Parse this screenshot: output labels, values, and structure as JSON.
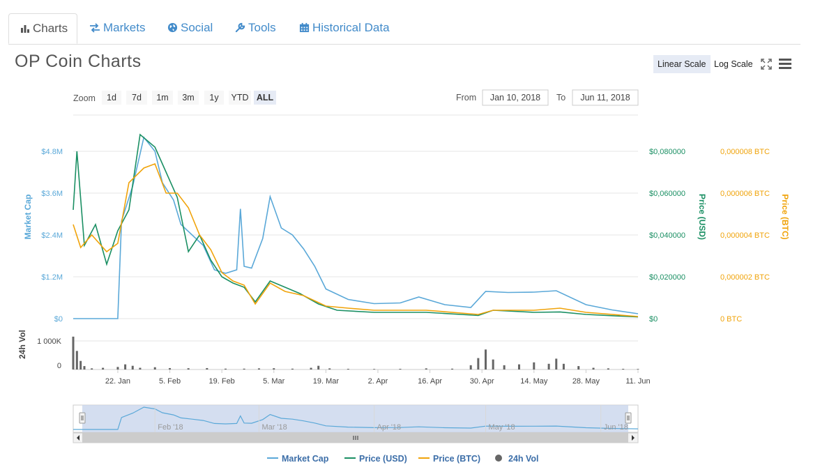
{
  "tabs": [
    {
      "label": "Charts",
      "icon": "bar-chart-icon",
      "active": true
    },
    {
      "label": "Markets",
      "icon": "exchange-icon"
    },
    {
      "label": "Social",
      "icon": "globe-icon"
    },
    {
      "label": "Tools",
      "icon": "wrench-icon"
    },
    {
      "label": "Historical Data",
      "icon": "calendar-icon"
    }
  ],
  "title": "OP Coin Charts",
  "scale": {
    "linear_label": "Linear Scale",
    "log_label": "Log Scale",
    "active": "linear"
  },
  "zoom": {
    "label": "Zoom",
    "buttons": [
      "1d",
      "7d",
      "1m",
      "3m",
      "1y",
      "YTD",
      "ALL"
    ],
    "selected": "ALL"
  },
  "range": {
    "from_label": "From",
    "from_value": "Jan 10, 2018",
    "to_label": "To",
    "to_value": "Jun 11, 2018"
  },
  "colors": {
    "market_cap": "#5aa8d8",
    "price_usd": "#1a8f63",
    "price_btc": "#f0a30a",
    "volume": "#666666",
    "navigator_fill": "#c9d6ec"
  },
  "chart_data": {
    "type": "line",
    "x_ticks": [
      "22. Jan",
      "5. Feb",
      "19. Feb",
      "5. Mar",
      "19. Mar",
      "2. Apr",
      "16. Apr",
      "30. Apr",
      "14. May",
      "28. May",
      "11. Jun"
    ],
    "x_range": [
      "2018-01-10",
      "2018-06-11"
    ],
    "axes": {
      "market_cap": {
        "title": "Market Cap",
        "ticks": [
          "$0",
          "$1.2M",
          "$2.4M",
          "$3.6M",
          "$4.8M"
        ],
        "range": [
          0,
          4800000
        ]
      },
      "price_usd": {
        "title": "Price (USD)",
        "ticks": [
          "$0",
          "$0,020000",
          "$0,040000",
          "$0,060000",
          "$0,080000"
        ],
        "range": [
          0,
          0.08
        ]
      },
      "price_btc": {
        "title": "Price (BTC)",
        "ticks": [
          "0 BTC",
          "0,000002 BTC",
          "0,000004 BTC",
          "0,000006 BTC",
          "0,000008 BTC"
        ],
        "range": [
          0,
          8e-06
        ]
      },
      "volume": {
        "title": "24h Vol",
        "ticks": [
          "0",
          "1 000K"
        ],
        "range": [
          0,
          1000000
        ]
      }
    },
    "series": [
      {
        "name": "Market Cap",
        "axis": "market_cap",
        "points": [
          [
            "2018-01-10",
            0
          ],
          [
            "2018-01-22",
            0
          ],
          [
            "2018-01-23",
            2800000
          ],
          [
            "2018-01-26",
            3800000
          ],
          [
            "2018-01-29",
            5200000
          ],
          [
            "2018-02-01",
            4800000
          ],
          [
            "2018-02-03",
            3900000
          ],
          [
            "2018-02-06",
            3400000
          ],
          [
            "2018-02-08",
            2700000
          ],
          [
            "2018-02-11",
            2400000
          ],
          [
            "2018-02-14",
            2100000
          ],
          [
            "2018-02-17",
            1400000
          ],
          [
            "2018-02-20",
            1300000
          ],
          [
            "2018-02-23",
            1400000
          ],
          [
            "2018-02-24",
            3150000
          ],
          [
            "2018-02-25",
            1500000
          ],
          [
            "2018-02-27",
            1450000
          ],
          [
            "2018-03-02",
            2300000
          ],
          [
            "2018-03-04",
            3500000
          ],
          [
            "2018-03-07",
            2600000
          ],
          [
            "2018-03-10",
            2400000
          ],
          [
            "2018-03-13",
            2000000
          ],
          [
            "2018-03-16",
            1500000
          ],
          [
            "2018-03-19",
            850000
          ],
          [
            "2018-03-25",
            550000
          ],
          [
            "2018-04-01",
            430000
          ],
          [
            "2018-04-08",
            450000
          ],
          [
            "2018-04-13",
            620000
          ],
          [
            "2018-04-20",
            400000
          ],
          [
            "2018-04-27",
            320000
          ],
          [
            "2018-05-01",
            780000
          ],
          [
            "2018-05-07",
            750000
          ],
          [
            "2018-05-14",
            760000
          ],
          [
            "2018-05-20",
            800000
          ],
          [
            "2018-05-28",
            400000
          ],
          [
            "2018-06-04",
            250000
          ],
          [
            "2018-06-11",
            140000
          ]
        ]
      },
      {
        "name": "Price (USD)",
        "axis": "price_usd",
        "points": [
          [
            "2018-01-10",
            0.052
          ],
          [
            "2018-01-11",
            0.08
          ],
          [
            "2018-01-13",
            0.035
          ],
          [
            "2018-01-16",
            0.045
          ],
          [
            "2018-01-19",
            0.026
          ],
          [
            "2018-01-22",
            0.042
          ],
          [
            "2018-01-25",
            0.052
          ],
          [
            "2018-01-28",
            0.088
          ],
          [
            "2018-02-01",
            0.082
          ],
          [
            "2018-02-04",
            0.07
          ],
          [
            "2018-02-07",
            0.058
          ],
          [
            "2018-02-10",
            0.032
          ],
          [
            "2018-02-13",
            0.04
          ],
          [
            "2018-02-16",
            0.028
          ],
          [
            "2018-02-19",
            0.02
          ],
          [
            "2018-02-22",
            0.017
          ],
          [
            "2018-02-25",
            0.015
          ],
          [
            "2018-02-28",
            0.008
          ],
          [
            "2018-03-04",
            0.018
          ],
          [
            "2018-03-08",
            0.015
          ],
          [
            "2018-03-12",
            0.012
          ],
          [
            "2018-03-17",
            0.007
          ],
          [
            "2018-03-22",
            0.004
          ],
          [
            "2018-04-01",
            0.003
          ],
          [
            "2018-04-15",
            0.003
          ],
          [
            "2018-04-29",
            0.0015
          ],
          [
            "2018-05-03",
            0.004
          ],
          [
            "2018-05-14",
            0.003
          ],
          [
            "2018-05-21",
            0.0032
          ],
          [
            "2018-05-28",
            0.002
          ],
          [
            "2018-06-11",
            0.0008
          ]
        ]
      },
      {
        "name": "Price (BTC)",
        "axis": "price_btc",
        "points": [
          [
            "2018-01-10",
            4.5e-06
          ],
          [
            "2018-01-12",
            3.4e-06
          ],
          [
            "2018-01-15",
            4e-06
          ],
          [
            "2018-01-19",
            3.2e-06
          ],
          [
            "2018-01-22",
            3.6e-06
          ],
          [
            "2018-01-25",
            6.5e-06
          ],
          [
            "2018-01-29",
            7.2e-06
          ],
          [
            "2018-02-01",
            7.4e-06
          ],
          [
            "2018-02-04",
            6e-06
          ],
          [
            "2018-02-07",
            6e-06
          ],
          [
            "2018-02-10",
            5.3e-06
          ],
          [
            "2018-02-13",
            4e-06
          ],
          [
            "2018-02-16",
            3.3e-06
          ],
          [
            "2018-02-19",
            2.2e-06
          ],
          [
            "2018-02-22",
            1.8e-06
          ],
          [
            "2018-02-25",
            1.6e-06
          ],
          [
            "2018-02-28",
            7e-07
          ],
          [
            "2018-03-04",
            1.7e-06
          ],
          [
            "2018-03-08",
            1.3e-06
          ],
          [
            "2018-03-13",
            1.1e-06
          ],
          [
            "2018-03-19",
            6e-07
          ],
          [
            "2018-03-25",
            5e-07
          ],
          [
            "2018-04-01",
            4e-07
          ],
          [
            "2018-04-15",
            4e-07
          ],
          [
            "2018-04-29",
            2e-07
          ],
          [
            "2018-05-03",
            4e-07
          ],
          [
            "2018-05-14",
            4e-07
          ],
          [
            "2018-05-21",
            5e-07
          ],
          [
            "2018-05-28",
            3e-07
          ],
          [
            "2018-06-11",
            1e-07
          ]
        ]
      },
      {
        "name": "24h Vol",
        "axis": "volume",
        "type": "column",
        "points": [
          [
            "2018-01-10",
            1150000
          ],
          [
            "2018-01-11",
            650000
          ],
          [
            "2018-01-12",
            300000
          ],
          [
            "2018-01-13",
            120000
          ],
          [
            "2018-01-15",
            40000
          ],
          [
            "2018-01-18",
            60000
          ],
          [
            "2018-01-22",
            90000
          ],
          [
            "2018-01-24",
            180000
          ],
          [
            "2018-01-26",
            130000
          ],
          [
            "2018-01-28",
            60000
          ],
          [
            "2018-02-01",
            80000
          ],
          [
            "2018-02-05",
            50000
          ],
          [
            "2018-02-10",
            45000
          ],
          [
            "2018-02-15",
            50000
          ],
          [
            "2018-02-20",
            30000
          ],
          [
            "2018-02-25",
            30000
          ],
          [
            "2018-03-01",
            40000
          ],
          [
            "2018-03-05",
            45000
          ],
          [
            "2018-03-10",
            30000
          ],
          [
            "2018-03-15",
            60000
          ],
          [
            "2018-03-17",
            130000
          ],
          [
            "2018-03-20",
            40000
          ],
          [
            "2018-03-25",
            25000
          ],
          [
            "2018-04-01",
            20000
          ],
          [
            "2018-04-08",
            25000
          ],
          [
            "2018-04-15",
            40000
          ],
          [
            "2018-04-22",
            30000
          ],
          [
            "2018-04-27",
            150000
          ],
          [
            "2018-04-29",
            400000
          ],
          [
            "2018-05-01",
            700000
          ],
          [
            "2018-05-03",
            350000
          ],
          [
            "2018-05-06",
            150000
          ],
          [
            "2018-05-10",
            180000
          ],
          [
            "2018-05-14",
            250000
          ],
          [
            "2018-05-18",
            200000
          ],
          [
            "2018-05-20",
            380000
          ],
          [
            "2018-05-22",
            200000
          ],
          [
            "2018-05-26",
            120000
          ],
          [
            "2018-05-30",
            60000
          ],
          [
            "2018-06-03",
            40000
          ],
          [
            "2018-06-07",
            25000
          ],
          [
            "2018-06-11",
            20000
          ]
        ]
      }
    ],
    "navigator": {
      "ticks": [
        "Feb '18",
        "Mar '18",
        "Apr '18",
        "May '18",
        "Jun '18"
      ]
    },
    "legend": {
      "placement": "bottom"
    },
    "grid": true
  }
}
